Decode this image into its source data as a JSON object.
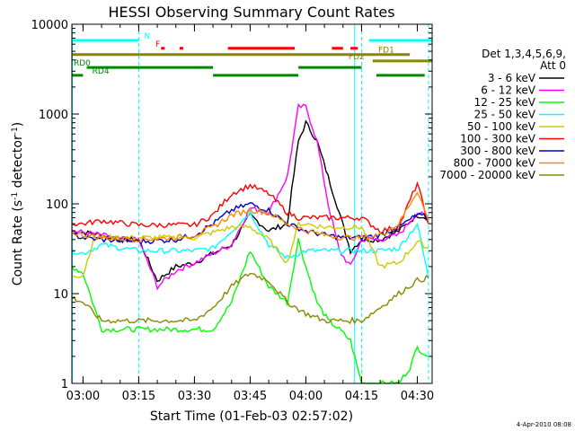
{
  "chart_data": {
    "type": "line",
    "title": "HESSI Observing Summary Count Rates",
    "xlabel": "Start Time (01-Feb-03 02:57:02)",
    "ylabel": "Count Rate (s⁻¹ detector⁻¹)",
    "ylabel_main": "Count Rate (s",
    "ylabel_sup1": "-1",
    "ylabel_mid": " detector",
    "ylabel_sup2": "-1",
    "ylabel_end": ")",
    "y_scale": "log",
    "xlim": [
      "02:57",
      "04:34"
    ],
    "ylim": [
      1,
      10000
    ],
    "x_ticks": [
      "03:00",
      "03:15",
      "03:30",
      "03:45",
      "04:00",
      "04:15",
      "04:30"
    ],
    "y_ticks": [
      {
        "value": 1,
        "label": "1"
      },
      {
        "value": 10,
        "label": "10"
      },
      {
        "value": 100,
        "label": "100"
      },
      {
        "value": 1000,
        "label": "1000"
      },
      {
        "value": 10000,
        "label": "10000"
      }
    ],
    "legend_title": "Det 1,3,4,5,6,9,",
    "legend_subtitle": "Att 0",
    "legend_position": "right",
    "timestamp": "4-Apr-2010 08:08",
    "dashed_verticals": [
      "03:15",
      "04:15",
      "04:33"
    ],
    "solid_verticals": [
      "02:57",
      "04:13"
    ],
    "series": [
      {
        "name": "3 - 6 keV",
        "color": "#000000",
        "points": [
          [
            "02:57",
            50
          ],
          [
            "03:05",
            45
          ],
          [
            "03:10",
            40
          ],
          [
            "03:15",
            40
          ],
          [
            "03:20",
            14
          ],
          [
            "03:25",
            20
          ],
          [
            "03:30",
            22
          ],
          [
            "03:35",
            28
          ],
          [
            "03:40",
            35
          ],
          [
            "03:45",
            75
          ],
          [
            "03:50",
            50
          ],
          [
            "03:55",
            60
          ],
          [
            "03:58",
            500
          ],
          [
            "04:00",
            800
          ],
          [
            "04:03",
            500
          ],
          [
            "04:06",
            200
          ],
          [
            "04:09",
            80
          ],
          [
            "04:12",
            30
          ],
          [
            "04:15",
            40
          ],
          [
            "04:20",
            40
          ],
          [
            "04:25",
            50
          ],
          [
            "04:30",
            75
          ],
          [
            "04:33",
            70
          ]
        ]
      },
      {
        "name": "6 - 12 keV",
        "color": "#ff00ff",
        "points": [
          [
            "02:57",
            50
          ],
          [
            "03:05",
            45
          ],
          [
            "03:10",
            40
          ],
          [
            "03:15",
            40
          ],
          [
            "03:20",
            12
          ],
          [
            "03:25",
            18
          ],
          [
            "03:30",
            22
          ],
          [
            "03:35",
            28
          ],
          [
            "03:40",
            35
          ],
          [
            "03:45",
            90
          ],
          [
            "03:50",
            80
          ],
          [
            "03:55",
            200
          ],
          [
            "03:58",
            1200
          ],
          [
            "04:00",
            1200
          ],
          [
            "04:03",
            500
          ],
          [
            "04:06",
            100
          ],
          [
            "04:09",
            30
          ],
          [
            "04:12",
            20
          ],
          [
            "04:15",
            40
          ],
          [
            "04:20",
            40
          ],
          [
            "04:25",
            45
          ],
          [
            "04:30",
            80
          ],
          [
            "04:33",
            70
          ]
        ]
      },
      {
        "name": "12 - 25 keV",
        "color": "#00ff00",
        "points": [
          [
            "02:57",
            20
          ],
          [
            "03:00",
            17
          ],
          [
            "03:05",
            4
          ],
          [
            "03:15",
            4
          ],
          [
            "03:25",
            4
          ],
          [
            "03:30",
            4
          ],
          [
            "03:35",
            4
          ],
          [
            "03:40",
            8
          ],
          [
            "03:45",
            30
          ],
          [
            "03:50",
            12
          ],
          [
            "03:55",
            8
          ],
          [
            "03:58",
            40
          ],
          [
            "04:00",
            20
          ],
          [
            "04:03",
            8
          ],
          [
            "04:06",
            5
          ],
          [
            "04:09",
            4
          ],
          [
            "04:12",
            3
          ],
          [
            "04:15",
            1
          ],
          [
            "04:20",
            1
          ],
          [
            "04:25",
            1
          ],
          [
            "04:28",
            1.5
          ],
          [
            "04:30",
            2.5
          ],
          [
            "04:33",
            2
          ]
        ]
      },
      {
        "name": "25 - 50 keV",
        "color": "#00ffff",
        "points": [
          [
            "02:57",
            30
          ],
          [
            "03:00",
            28
          ],
          [
            "03:05",
            35
          ],
          [
            "03:15",
            30
          ],
          [
            "03:25",
            30
          ],
          [
            "03:30",
            30
          ],
          [
            "03:35",
            32
          ],
          [
            "03:40",
            50
          ],
          [
            "03:45",
            80
          ],
          [
            "03:50",
            35
          ],
          [
            "03:55",
            25
          ],
          [
            "04:00",
            30
          ],
          [
            "04:05",
            30
          ],
          [
            "04:10",
            30
          ],
          [
            "04:15",
            30
          ],
          [
            "04:20",
            30
          ],
          [
            "04:25",
            32
          ],
          [
            "04:30",
            60
          ],
          [
            "04:33",
            15
          ]
        ]
      },
      {
        "name": "50 - 100 keV",
        "color": "#cccc00",
        "points": [
          [
            "02:57",
            16
          ],
          [
            "03:00",
            16
          ],
          [
            "03:03",
            42
          ],
          [
            "03:15",
            42
          ],
          [
            "03:25",
            42
          ],
          [
            "03:30",
            42
          ],
          [
            "03:35",
            48
          ],
          [
            "03:40",
            55
          ],
          [
            "03:45",
            55
          ],
          [
            "03:50",
            40
          ],
          [
            "03:55",
            22
          ],
          [
            "03:58",
            60
          ],
          [
            "04:00",
            60
          ],
          [
            "04:05",
            55
          ],
          [
            "04:10",
            55
          ],
          [
            "04:15",
            55
          ],
          [
            "04:20",
            20
          ],
          [
            "04:25",
            22
          ],
          [
            "04:30",
            38
          ],
          [
            "04:33",
            32
          ]
        ]
      },
      {
        "name": "100 - 300 keV",
        "color": "#ff0000",
        "points": [
          [
            "02:57",
            60
          ],
          [
            "03:00",
            60
          ],
          [
            "03:05",
            65
          ],
          [
            "03:15",
            58
          ],
          [
            "03:25",
            58
          ],
          [
            "03:30",
            58
          ],
          [
            "03:35",
            75
          ],
          [
            "03:40",
            130
          ],
          [
            "03:45",
            160
          ],
          [
            "03:50",
            130
          ],
          [
            "03:55",
            80
          ],
          [
            "03:58",
            70
          ],
          [
            "04:00",
            70
          ],
          [
            "04:05",
            70
          ],
          [
            "04:10",
            70
          ],
          [
            "04:15",
            70
          ],
          [
            "04:20",
            50
          ],
          [
            "04:25",
            55
          ],
          [
            "04:30",
            170
          ],
          [
            "04:33",
            60
          ]
        ]
      },
      {
        "name": "300 - 800 keV",
        "color": "#0000cc",
        "points": [
          [
            "02:57",
            45
          ],
          [
            "03:00",
            42
          ],
          [
            "03:05",
            40
          ],
          [
            "03:15",
            38
          ],
          [
            "03:25",
            40
          ],
          [
            "03:30",
            45
          ],
          [
            "03:35",
            60
          ],
          [
            "03:40",
            85
          ],
          [
            "03:45",
            100
          ],
          [
            "03:50",
            85
          ],
          [
            "03:55",
            60
          ],
          [
            "04:00",
            50
          ],
          [
            "04:05",
            45
          ],
          [
            "04:10",
            42
          ],
          [
            "04:15",
            42
          ],
          [
            "04:20",
            45
          ],
          [
            "04:25",
            55
          ],
          [
            "04:30",
            75
          ],
          [
            "04:33",
            70
          ]
        ]
      },
      {
        "name": "800 - 7000 keV",
        "color": "#ff8800",
        "points": [
          [
            "02:57",
            48
          ],
          [
            "03:00",
            45
          ],
          [
            "03:05",
            42
          ],
          [
            "03:15",
            40
          ],
          [
            "03:25",
            42
          ],
          [
            "03:30",
            45
          ],
          [
            "03:35",
            55
          ],
          [
            "03:40",
            75
          ],
          [
            "03:45",
            85
          ],
          [
            "03:50",
            80
          ],
          [
            "03:55",
            60
          ],
          [
            "04:00",
            50
          ],
          [
            "04:05",
            45
          ],
          [
            "04:10",
            42
          ],
          [
            "04:15",
            42
          ],
          [
            "04:20",
            45
          ],
          [
            "04:25",
            60
          ],
          [
            "04:30",
            140
          ],
          [
            "04:33",
            65
          ]
        ]
      },
      {
        "name": "7000 - 20000 keV",
        "color": "#888800",
        "points": [
          [
            "02:57",
            9
          ],
          [
            "03:00",
            8
          ],
          [
            "03:05",
            5
          ],
          [
            "03:15",
            5
          ],
          [
            "03:25",
            5
          ],
          [
            "03:30",
            5
          ],
          [
            "03:35",
            7
          ],
          [
            "03:40",
            12
          ],
          [
            "03:45",
            17
          ],
          [
            "03:50",
            14
          ],
          [
            "03:55",
            8
          ],
          [
            "04:00",
            6
          ],
          [
            "04:05",
            5
          ],
          [
            "04:10",
            5
          ],
          [
            "04:15",
            5
          ],
          [
            "04:20",
            7
          ],
          [
            "04:25",
            10
          ],
          [
            "04:30",
            14
          ],
          [
            "04:33",
            15
          ]
        ]
      }
    ],
    "flag_bars": [
      {
        "label": "N",
        "color": "#00ffff",
        "label_at": "03:16",
        "y": 6600,
        "segments": [
          [
            "02:57",
            "03:15"
          ],
          [
            "04:17",
            "04:34"
          ]
        ]
      },
      {
        "label": "F",
        "color": "#ff0000",
        "label_at": "03:19",
        "y": 5400,
        "segments": [
          [
            "03:21",
            "03:22"
          ],
          [
            "03:26",
            "03:27"
          ],
          [
            "03:39",
            "03:57"
          ],
          [
            "04:07",
            "04:10"
          ],
          [
            "04:12",
            "04:14"
          ]
        ]
      },
      {
        "label": "FD1",
        "color": "#888800",
        "label_at": "04:19",
        "y": 4600,
        "segments": [
          [
            "02:57",
            "04:28"
          ]
        ]
      },
      {
        "label": "FD2",
        "color": "#888800",
        "label_at": "04:11",
        "y": 3900,
        "segments": [
          [
            "04:18",
            "04:34"
          ]
        ]
      },
      {
        "label": "RD0",
        "color": "#008800",
        "label_at": "02:57",
        "y": 3300,
        "segments": [
          [
            "03:01",
            "03:35"
          ],
          [
            "03:58",
            "04:15"
          ]
        ]
      },
      {
        "label": "RD4",
        "color": "#008800",
        "label_at": "03:02",
        "y": 2700,
        "segments": [
          [
            "02:57",
            "03:00"
          ],
          [
            "03:35",
            "03:58"
          ],
          [
            "04:19",
            "04:32"
          ]
        ]
      }
    ]
  }
}
